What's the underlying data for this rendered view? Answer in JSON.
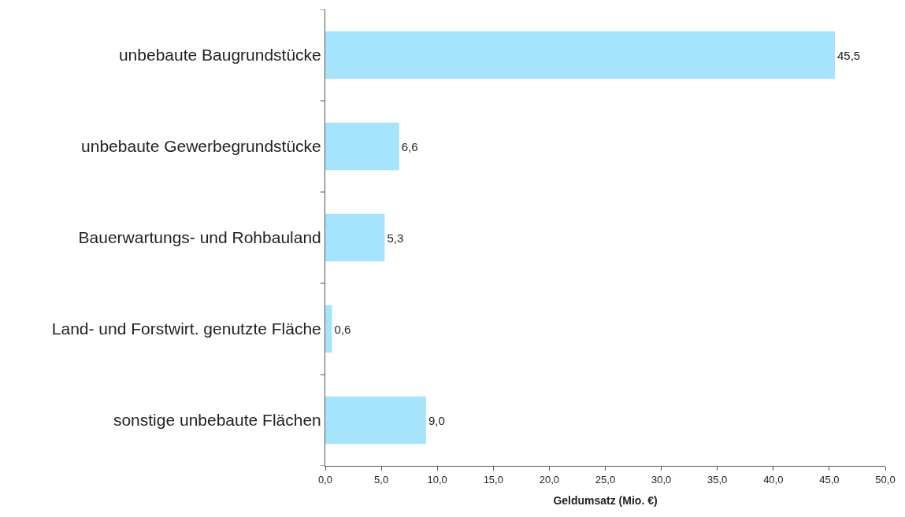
{
  "chart_data": {
    "type": "bar",
    "orientation": "horizontal",
    "xlabel": "Geldumsatz (Mio. €)",
    "categories": [
      "unbebaute Baugrundstücke",
      "unbebaute Gewerbegrundstücke",
      "Bauerwartungs- und Rohbauland",
      "Land- und Forstwirt. genutzte Fläche",
      "sonstige unbebaute Flächen"
    ],
    "values": [
      45.5,
      6.6,
      5.3,
      0.6,
      9.0
    ],
    "value_labels": [
      "45,5",
      "6,6",
      "5,3",
      "0,6",
      "9,0"
    ],
    "color": "#a6e4fb",
    "xlim": [
      0,
      50
    ],
    "xticks": [
      {
        "value": 0,
        "label": "0,0"
      },
      {
        "value": 5,
        "label": "5,0"
      },
      {
        "value": 10,
        "label": "10,0"
      },
      {
        "value": 15,
        "label": "15,0"
      },
      {
        "value": 20,
        "label": "20,0"
      },
      {
        "value": 25,
        "label": "25,0"
      },
      {
        "value": 30,
        "label": "30,0"
      },
      {
        "value": 35,
        "label": "35,0"
      },
      {
        "value": 40,
        "label": "40,0"
      },
      {
        "value": 45,
        "label": "45,0"
      },
      {
        "value": 50,
        "label": "50,0"
      }
    ]
  }
}
